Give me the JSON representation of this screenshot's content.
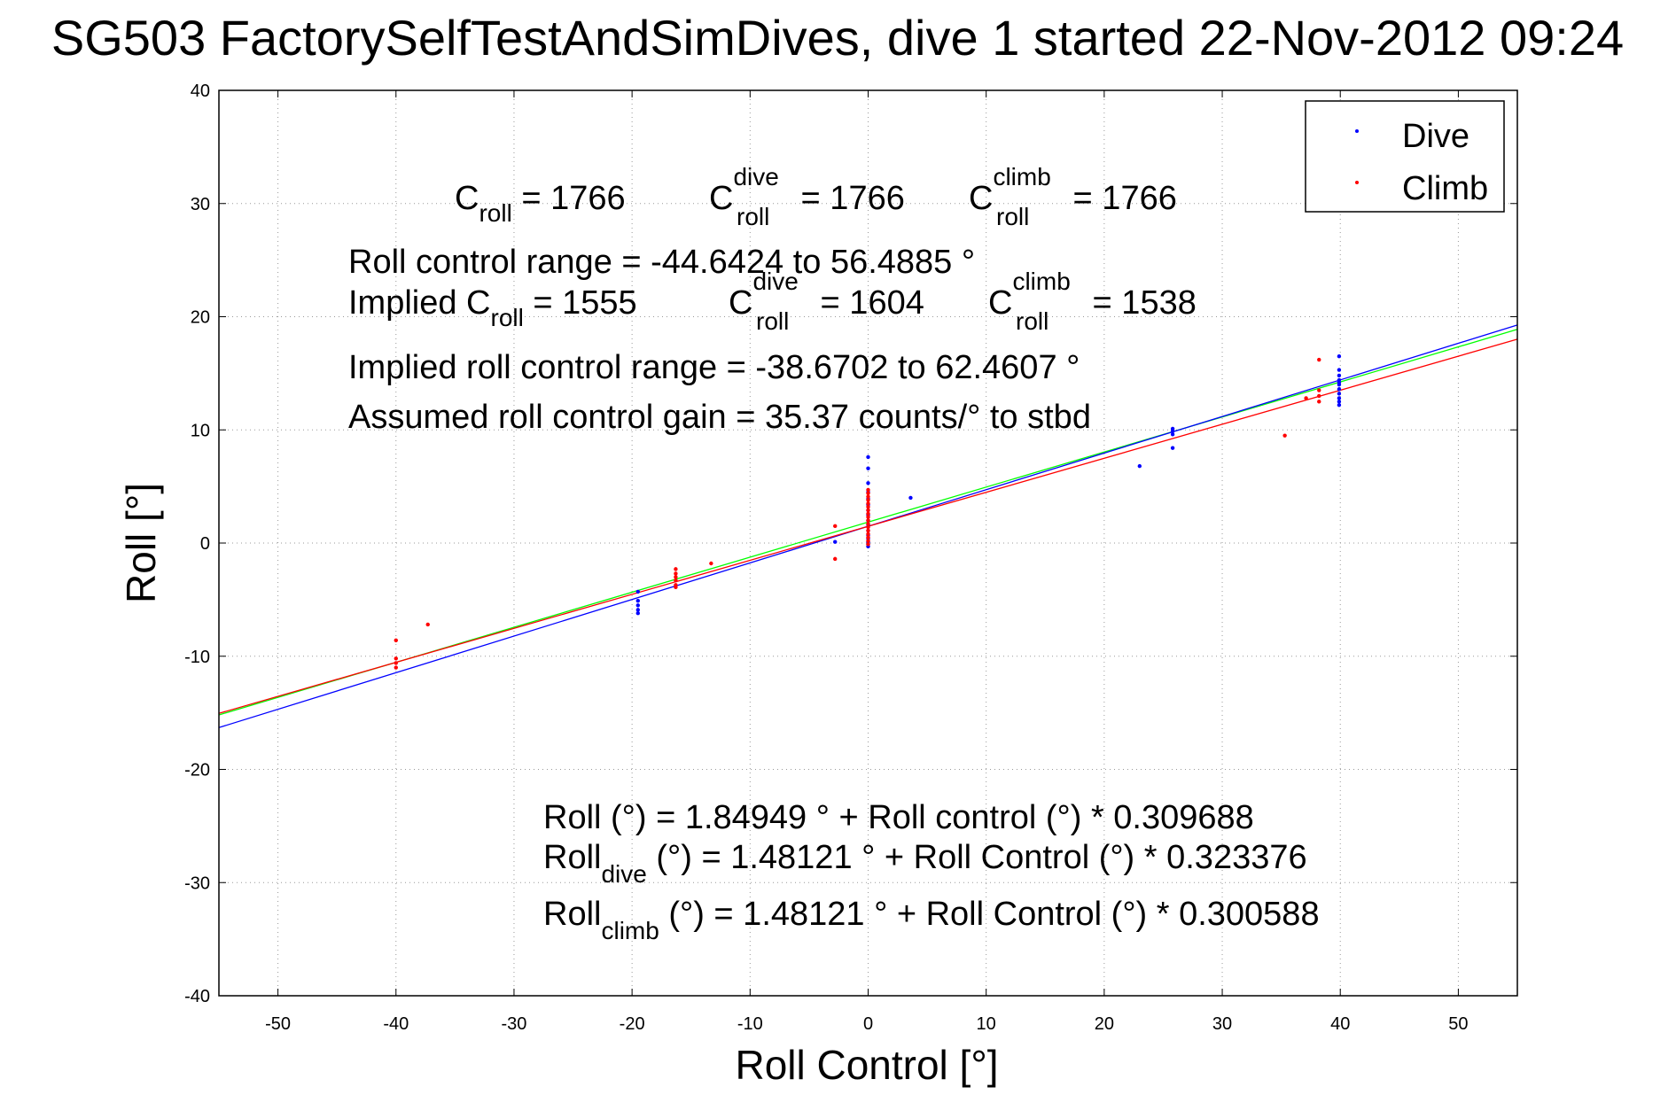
{
  "chart_data": {
    "type": "scatter",
    "title": "SG503 FactorySelfTestAndSimDives, dive 1 started 22-Nov-2012 09:24",
    "xlabel": "Roll Control [°]",
    "ylabel": "Roll [°]",
    "xlim": [
      -55,
      55
    ],
    "ylim": [
      -40,
      40
    ],
    "xticks": [
      -50,
      -40,
      -30,
      -20,
      -10,
      0,
      10,
      20,
      30,
      40,
      50
    ],
    "yticks": [
      -40,
      -30,
      -20,
      -10,
      0,
      10,
      20,
      30,
      40
    ],
    "grid": true,
    "legend_position": "top-right",
    "series": [
      {
        "name": "Dive",
        "color": "#0000ff",
        "x": [
          -19.5,
          -19.5,
          -19.5,
          -19.5,
          -19.5,
          -2.8,
          0,
          0,
          0,
          0,
          0,
          0,
          0,
          0,
          0,
          0,
          0,
          0,
          0,
          0,
          0,
          0,
          3.6,
          23,
          25.8,
          25.8,
          25.8,
          25.8,
          39.9,
          39.9,
          39.9,
          39.9,
          39.9,
          39.9,
          39.9,
          39.9,
          39.9,
          39.9,
          39.9
        ],
        "y": [
          -4.3,
          -5.1,
          -5.5,
          -5.9,
          -6.2,
          0.1,
          7.6,
          5.3,
          4.5,
          3.9,
          3.4,
          2.9,
          2.5,
          2.0,
          1.6,
          1.1,
          0.7,
          0.4,
          0.1,
          -0.1,
          -0.3,
          6.6,
          4.0,
          6.8,
          8.4,
          9.6,
          9.9,
          10.1,
          16.5,
          15.3,
          14.8,
          14.4,
          14.0,
          13.6,
          13.2,
          12.8,
          12.5,
          12.2,
          14.2
        ],
        "marker": "point"
      },
      {
        "name": "Climb",
        "color": "#ff0000",
        "x": [
          -40,
          -40,
          -40,
          -40,
          -37.3,
          -16.3,
          -16.3,
          -16.3,
          -16.3,
          -16.3,
          -16.3,
          -13.3,
          -2.8,
          -2.8,
          0,
          0,
          0,
          0,
          0,
          0,
          0,
          0,
          0,
          0,
          0,
          0,
          0,
          0,
          0,
          0,
          0,
          35.3,
          37.1,
          38.2,
          38.2,
          38.2,
          38.2
        ],
        "y": [
          -8.6,
          -10.2,
          -10.6,
          -11.0,
          -7.2,
          -2.3,
          -2.7,
          -3.0,
          -3.3,
          -3.7,
          -3.9,
          -1.8,
          1.5,
          -1.4,
          4.4,
          4.1,
          3.8,
          3.5,
          3.2,
          2.9,
          2.6,
          2.3,
          2.0,
          1.7,
          1.4,
          1.1,
          0.8,
          0.5,
          0.2,
          -0.1,
          4.7,
          9.5,
          12.8,
          16.2,
          13.5,
          13.0,
          12.5
        ],
        "marker": "point"
      }
    ],
    "fit_lines": [
      {
        "name": "Roll fit",
        "color": "#00ff00",
        "intercept": 1.84949,
        "slope": 0.309688
      },
      {
        "name": "Dive fit",
        "color": "#0000ff",
        "intercept": 1.48121,
        "slope": 0.323376
      },
      {
        "name": "Climb fit",
        "color": "#ff0000",
        "intercept": 1.48121,
        "slope": 0.300588
      }
    ],
    "legend": {
      "dive": "Dive",
      "climb": "Climb"
    },
    "annotations": {
      "c_roll": {
        "main": "C",
        "sub": "roll",
        "value": " = 1766"
      },
      "c_roll_dive": {
        "main": "C",
        "sup": "dive",
        "sub": "roll",
        "value": " = 1766"
      },
      "c_roll_climb": {
        "main": "C",
        "sup": "climb",
        "sub": "roll",
        "value": " = 1766"
      },
      "range_line": "Roll control range = -44.6424 to 56.4885 °",
      "implied_c_roll": {
        "main": "Implied C",
        "sub": "roll",
        "value": " = 1555"
      },
      "implied_c_dive": {
        "main": "C",
        "sup": "dive",
        "sub": "roll",
        "value": " = 1604"
      },
      "implied_c_climb": {
        "main": "C",
        "sup": "climb",
        "sub": "roll",
        "value": " = 1538"
      },
      "implied_range_line": "Implied roll control range = -38.6702 to 62.4607 °",
      "gain_line": "Assumed roll control gain = 35.37 counts/° to stbd",
      "eq1": "Roll (°) = 1.84949 ° + Roll control (°) * 0.309688",
      "eq2": {
        "main": "Roll",
        "sub": "dive",
        "rest": " (°) = 1.48121 ° + Roll Control (°) * 0.323376"
      },
      "eq3": {
        "main": "Roll",
        "sub": "climb",
        "rest": " (°) = 1.48121 ° + Roll Control (°) * 0.300588"
      }
    }
  }
}
